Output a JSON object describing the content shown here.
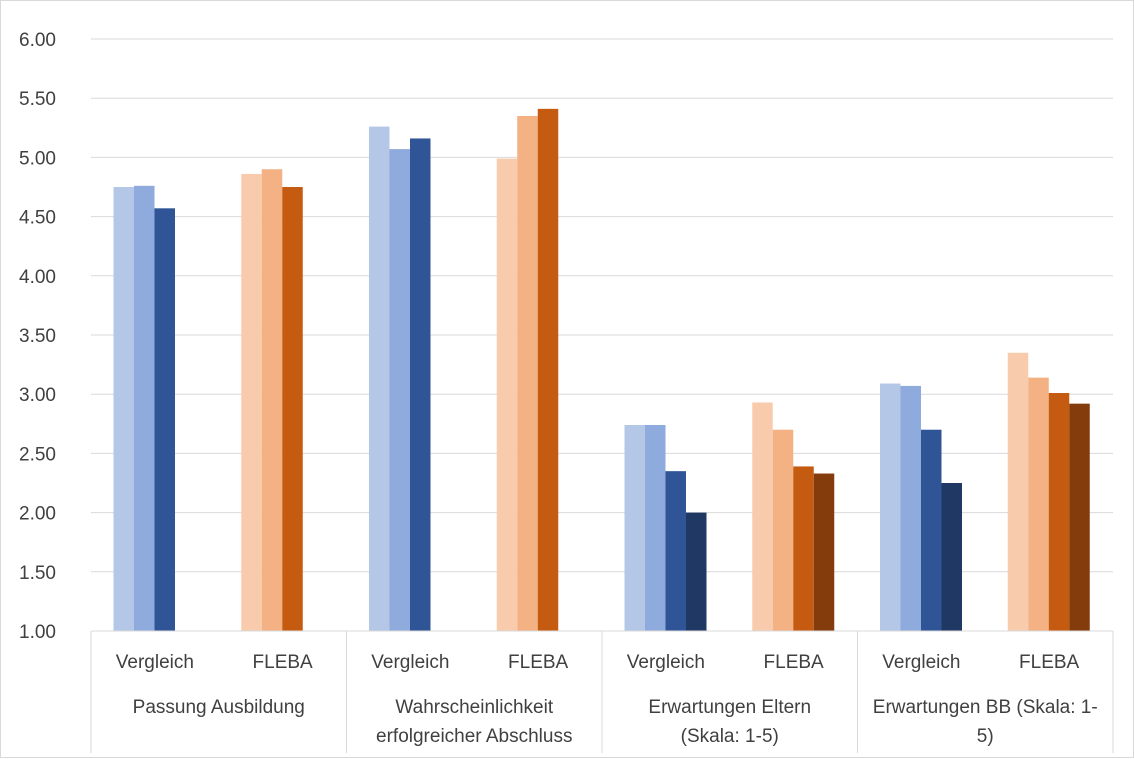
{
  "chart_data": {
    "type": "bar",
    "title": "",
    "xlabel": "",
    "ylabel": "",
    "ylim": [
      1.0,
      6.0
    ],
    "yticks": [
      "1.00",
      "1.50",
      "2.00",
      "2.50",
      "3.00",
      "3.50",
      "4.00",
      "4.50",
      "5.00",
      "5.50",
      "6.00"
    ],
    "grid": true,
    "legend": "none",
    "categories": [
      {
        "label": "Passung Ausbildung",
        "label_lines": [
          "Passung Ausbildung"
        ],
        "subgroups": [
          {
            "label": "Vergleich",
            "values": [
              4.75,
              4.76,
              4.57
            ],
            "colors": [
              "#b4c7e7",
              "#8faadc",
              "#2f5597"
            ]
          },
          {
            "label": "FLEBA",
            "values": [
              4.86,
              4.9,
              4.75
            ],
            "colors": [
              "#f8cbad",
              "#f4b183",
              "#c55a11"
            ]
          }
        ]
      },
      {
        "label": "Wahrscheinlichkeit erfolgreicher Abschluss",
        "label_lines": [
          "Wahrscheinlichkeit",
          "erfolgreicher Abschluss"
        ],
        "subgroups": [
          {
            "label": "Vergleich",
            "values": [
              5.26,
              5.07,
              5.16
            ],
            "colors": [
              "#b4c7e7",
              "#8faadc",
              "#2f5597"
            ]
          },
          {
            "label": "FLEBA",
            "values": [
              4.99,
              5.35,
              5.41
            ],
            "colors": [
              "#f8cbad",
              "#f4b183",
              "#c55a11"
            ]
          }
        ]
      },
      {
        "label": "Erwartungen Eltern (Skala: 1-5)",
        "label_lines": [
          "Erwartungen Eltern",
          "(Skala: 1-5)"
        ],
        "subgroups": [
          {
            "label": "Vergleich",
            "values": [
              2.74,
              2.74,
              2.35,
              2.0
            ],
            "colors": [
              "#b4c7e7",
              "#8faadc",
              "#2f5597",
              "#203864"
            ]
          },
          {
            "label": "FLEBA",
            "values": [
              2.93,
              2.7,
              2.39,
              2.33
            ],
            "colors": [
              "#f8cbad",
              "#f4b183",
              "#c55a11",
              "#843c0c"
            ]
          }
        ]
      },
      {
        "label": "Erwartungen BB (Skala: 1-5)",
        "label_lines": [
          "Erwartungen BB (Skala: 1-",
          "5)"
        ],
        "subgroups": [
          {
            "label": "Vergleich",
            "values": [
              3.09,
              3.07,
              2.7,
              2.25
            ],
            "colors": [
              "#b4c7e7",
              "#8faadc",
              "#2f5597",
              "#203864"
            ]
          },
          {
            "label": "FLEBA",
            "values": [
              3.35,
              3.14,
              3.01,
              2.92
            ],
            "colors": [
              "#f8cbad",
              "#f4b183",
              "#c55a11",
              "#843c0c"
            ]
          }
        ]
      }
    ]
  }
}
